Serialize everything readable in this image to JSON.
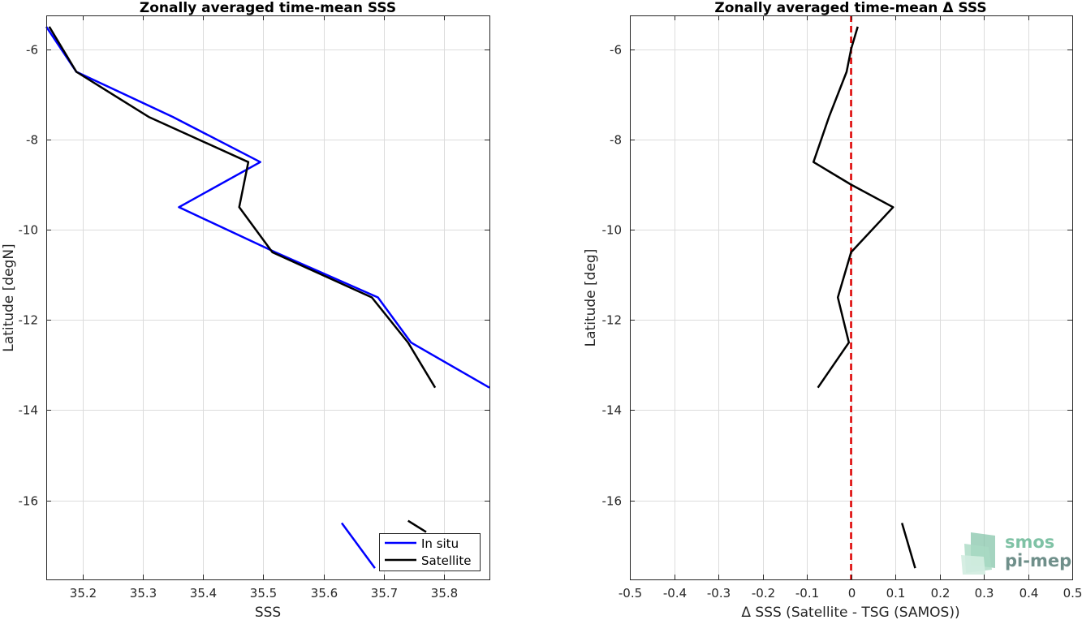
{
  "colors": {
    "in_situ": "#0000ff",
    "satellite": "#000000",
    "zero_line": "#e00000",
    "grid": "#dcdcdc",
    "logo_green": "#7fc2a5",
    "logo_gray": "#6f8f8a"
  },
  "logo": {
    "line1": "smos",
    "line2": "pi-mep"
  },
  "chart_data": [
    {
      "type": "line",
      "title": "Zonally averaged time-mean SSS",
      "xlabel": "SSS",
      "ylabel": "Latitude [degN]",
      "xlim": [
        35.14,
        35.875
      ],
      "ylim": [
        -17.75,
        -5.25
      ],
      "xticks": [
        35.2,
        35.3,
        35.4,
        35.5,
        35.6,
        35.7,
        35.8
      ],
      "xtick_labels": [
        "35.2",
        "35.3",
        "35.4",
        "35.5",
        "35.6",
        "35.7",
        "35.8"
      ],
      "yticks": [
        -6,
        -8,
        -10,
        -12,
        -14,
        -16
      ],
      "ytick_labels": [
        "-6",
        "-8",
        "-10",
        "-12",
        "-14",
        "-16"
      ],
      "grid": true,
      "legend": {
        "location": "bottom-right",
        "entries": [
          "In situ",
          "Satellite"
        ]
      },
      "series": [
        {
          "name": "In situ",
          "color": "#0000ff",
          "points": [
            [
              35.14,
              -5.5
            ],
            [
              35.19,
              -6.5
            ],
            [
              35.35,
              -7.5
            ],
            [
              35.495,
              -8.5
            ],
            [
              35.36,
              -9.5
            ],
            [
              35.52,
              -10.5
            ],
            [
              35.69,
              -11.5
            ],
            [
              35.745,
              -12.5
            ],
            [
              35.875,
              -13.5
            ]
          ],
          "extra_segment": [
            [
              35.63,
              -16.5
            ],
            [
              35.685,
              -17.5
            ]
          ]
        },
        {
          "name": "Satellite",
          "color": "#000000",
          "points": [
            [
              35.145,
              -5.5
            ],
            [
              35.19,
              -6.5
            ],
            [
              35.31,
              -7.5
            ],
            [
              35.475,
              -8.5
            ],
            [
              35.46,
              -9.5
            ],
            [
              35.515,
              -10.5
            ],
            [
              35.68,
              -11.5
            ],
            [
              35.74,
              -12.5
            ],
            [
              35.785,
              -13.5
            ]
          ],
          "extra_segment": [
            [
              35.74,
              -16.45
            ],
            [
              35.77,
              -16.7
            ]
          ]
        }
      ]
    },
    {
      "type": "line",
      "title": "Zonally averaged time-mean Δ SSS",
      "xlabel": "Δ SSS (Satellite - TSG (SAMOS))",
      "ylabel": "Latitude [deg]",
      "xlim": [
        -0.5,
        0.5
      ],
      "ylim": [
        -17.75,
        -5.25
      ],
      "xticks": [
        -0.5,
        -0.4,
        -0.3,
        -0.2,
        -0.1,
        0,
        0.1,
        0.2,
        0.3,
        0.4,
        0.5
      ],
      "xtick_labels": [
        "-0.5",
        "-0.4",
        "-0.3",
        "-0.2",
        "-0.1",
        "0",
        "0.1",
        "0.2",
        "0.3",
        "0.4",
        "0.5"
      ],
      "yticks": [
        -6,
        -8,
        -10,
        -12,
        -14,
        -16
      ],
      "ytick_labels": [
        "-6",
        "-8",
        "-10",
        "-12",
        "-14",
        "-16"
      ],
      "grid": true,
      "reference_line": {
        "x": 0,
        "style": "dashed",
        "color": "#e00000"
      },
      "series": [
        {
          "color": "#000000",
          "points": [
            [
              0.015,
              -5.5
            ],
            [
              0.0,
              -6.0
            ],
            [
              -0.01,
              -6.5
            ],
            [
              -0.05,
              -7.5
            ],
            [
              -0.085,
              -8.5
            ],
            [
              0.0,
              -9.0
            ],
            [
              0.095,
              -9.5
            ],
            [
              0.0,
              -10.5
            ],
            [
              -0.03,
              -11.5
            ],
            [
              -0.005,
              -12.5
            ],
            [
              -0.075,
              -13.5
            ]
          ],
          "extra_segment": [
            [
              0.115,
              -16.5
            ],
            [
              0.145,
              -17.5
            ]
          ]
        }
      ]
    }
  ]
}
